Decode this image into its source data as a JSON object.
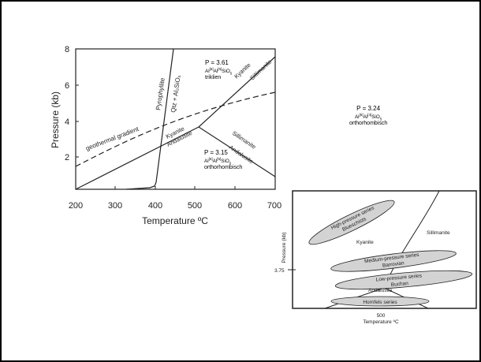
{
  "main_diagram": {
    "ylabel": "Pressure (kb)",
    "xlabel": "Temperature ºC",
    "y_ticks": [
      "2",
      "4",
      "6",
      "8"
    ],
    "x_ticks": [
      "200",
      "300",
      "400",
      "500",
      "600",
      "700"
    ],
    "labels": {
      "pyrophyllite": "Pyrophyllite",
      "qtz": "Qtz + Al₂SiO₅",
      "kyanite_upper": "Kyanite",
      "sillimanite_upper": "Sillimanite",
      "geothermal": "geothermal gradient",
      "kyanite_lower": "Kyanite",
      "andalusite_lower": "Andalusite",
      "sillimanite_lower": "Sillimanite",
      "andalusite_right": "Andalusite"
    }
  },
  "annotations": {
    "triklien": {
      "pressure": "P = 3.61",
      "formula_a": "Al",
      "formula_b": "Al",
      "formula_c": "SiO",
      "cn_a": "[6]",
      "cn_b": "[6]",
      "sub": "5",
      "system": "triklien"
    },
    "orthorhombisch_mid": {
      "pressure": "P = 3.15",
      "formula_a": "Al",
      "formula_b": "Al",
      "formula_c": "SiO",
      "cn_a": "[6]",
      "cn_b": "[5]",
      "sub": "5",
      "system": "orthorhombisch"
    },
    "orthorhombisch_right": {
      "pressure": "P = 3.24",
      "formula_a": "Al",
      "formula_b": "Al",
      "formula_c": "SiO",
      "cn_a": "[6]",
      "cn_b": "[4]",
      "sub": "5",
      "system": "orthorhombisch"
    }
  },
  "series_diagram": {
    "ylabel": "Pressure (kb)",
    "xlabel": "Temperature ºC",
    "y_tick": "3.75",
    "x_tick": "500",
    "kyanite": "Kyanite",
    "sillimanite": "Sillimanite",
    "andalusite": "Andalusite",
    "series": [
      {
        "name": "High-pressure series",
        "sub": "Blueschists"
      },
      {
        "name": "Medium-pressure series",
        "sub": "Barrovian"
      },
      {
        "name": "Low-pressure series",
        "sub": "Buchan"
      },
      {
        "name": "Hornfels series",
        "sub": ""
      }
    ]
  }
}
